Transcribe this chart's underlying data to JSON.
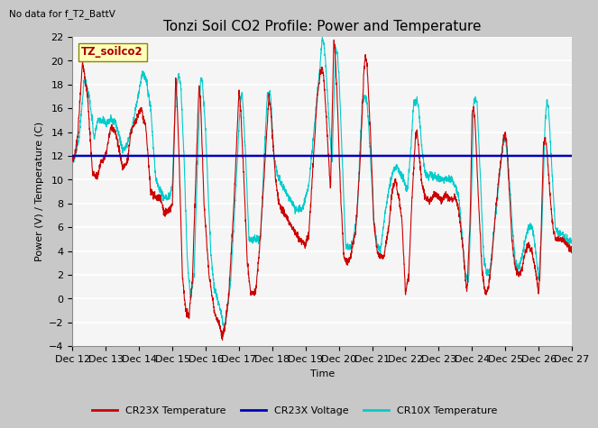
{
  "title": "Tonzi Soil CO2 Profile: Power and Temperature",
  "no_data_label": "No data for f_T2_BattV",
  "ylabel": "Power (V) / Temperature (C)",
  "xlabel": "Time",
  "ylim": [
    -4,
    22
  ],
  "yticks": [
    -4,
    -2,
    0,
    2,
    4,
    6,
    8,
    10,
    12,
    14,
    16,
    18,
    20,
    22
  ],
  "xtick_labels": [
    "Dec 12",
    "Dec 13",
    "Dec 14",
    "Dec 15",
    "Dec 16",
    "Dec 17",
    "Dec 18",
    "Dec 19",
    "Dec 20",
    "Dec 21",
    "Dec 22",
    "Dec 23",
    "Dec 24",
    "Dec 25",
    "Dec 26",
    "Dec 27"
  ],
  "voltage_value": 12.0,
  "legend_items": [
    "CR23X Temperature",
    "CR23X Voltage",
    "CR10X Temperature"
  ],
  "legend_colors": [
    "#cc0000",
    "#0000cc",
    "#00cccc"
  ],
  "box_label": "TZ_soilco2",
  "bg_color": "#ffffff",
  "plot_bg": "#f0f0f0",
  "title_fontsize": 11,
  "axis_fontsize": 8,
  "tick_fontsize": 8
}
